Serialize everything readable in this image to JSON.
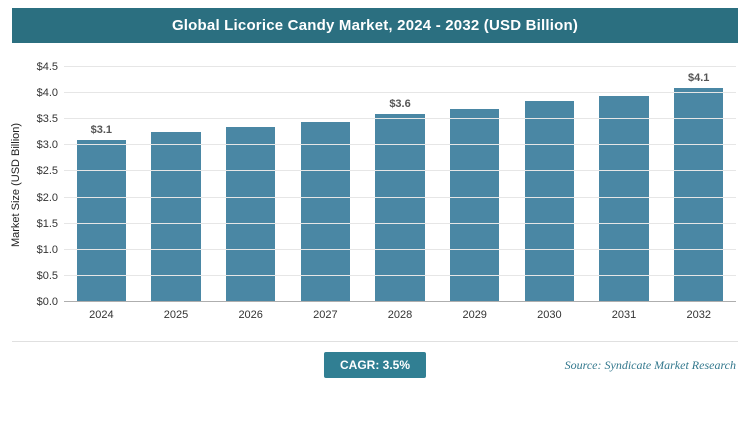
{
  "header": {
    "title": "Global Licorice Candy Market, 2024 - 2032 (USD Billion)"
  },
  "chart_data": {
    "type": "bar",
    "title": "Global Licorice Candy Market, 2024 - 2032 (USD Billion)",
    "categories": [
      "2024",
      "2025",
      "2026",
      "2027",
      "2028",
      "2029",
      "2030",
      "2031",
      "2032"
    ],
    "values": [
      3.1,
      3.25,
      3.35,
      3.45,
      3.6,
      3.7,
      3.85,
      3.95,
      4.1
    ],
    "data_labels": [
      "$3.1",
      null,
      null,
      null,
      "$3.6",
      null,
      null,
      null,
      "$4.1"
    ],
    "xlabel": "",
    "ylabel": "Market Size (USD Billion)",
    "ylim": [
      0,
      4.5
    ],
    "ytick_step": 0.5,
    "ytick_labels": [
      "$0.0",
      "$0.5",
      "$1.0",
      "$1.5",
      "$2.0",
      "$2.5",
      "$3.0",
      "$3.5",
      "$4.0",
      "$4.5"
    ],
    "grid": true,
    "legend": "none",
    "bar_color": "#4a87a4"
  },
  "footer": {
    "cagr": "CAGR: 3.5%",
    "source": "Source: Syndicate Market Research"
  },
  "colors": {
    "banner": "#2b6f80",
    "bar": "#4a87a4",
    "badge": "#317f93",
    "source_text": "#33788d",
    "data_label_text": "#555555",
    "gridline": "#e6e6e6"
  }
}
